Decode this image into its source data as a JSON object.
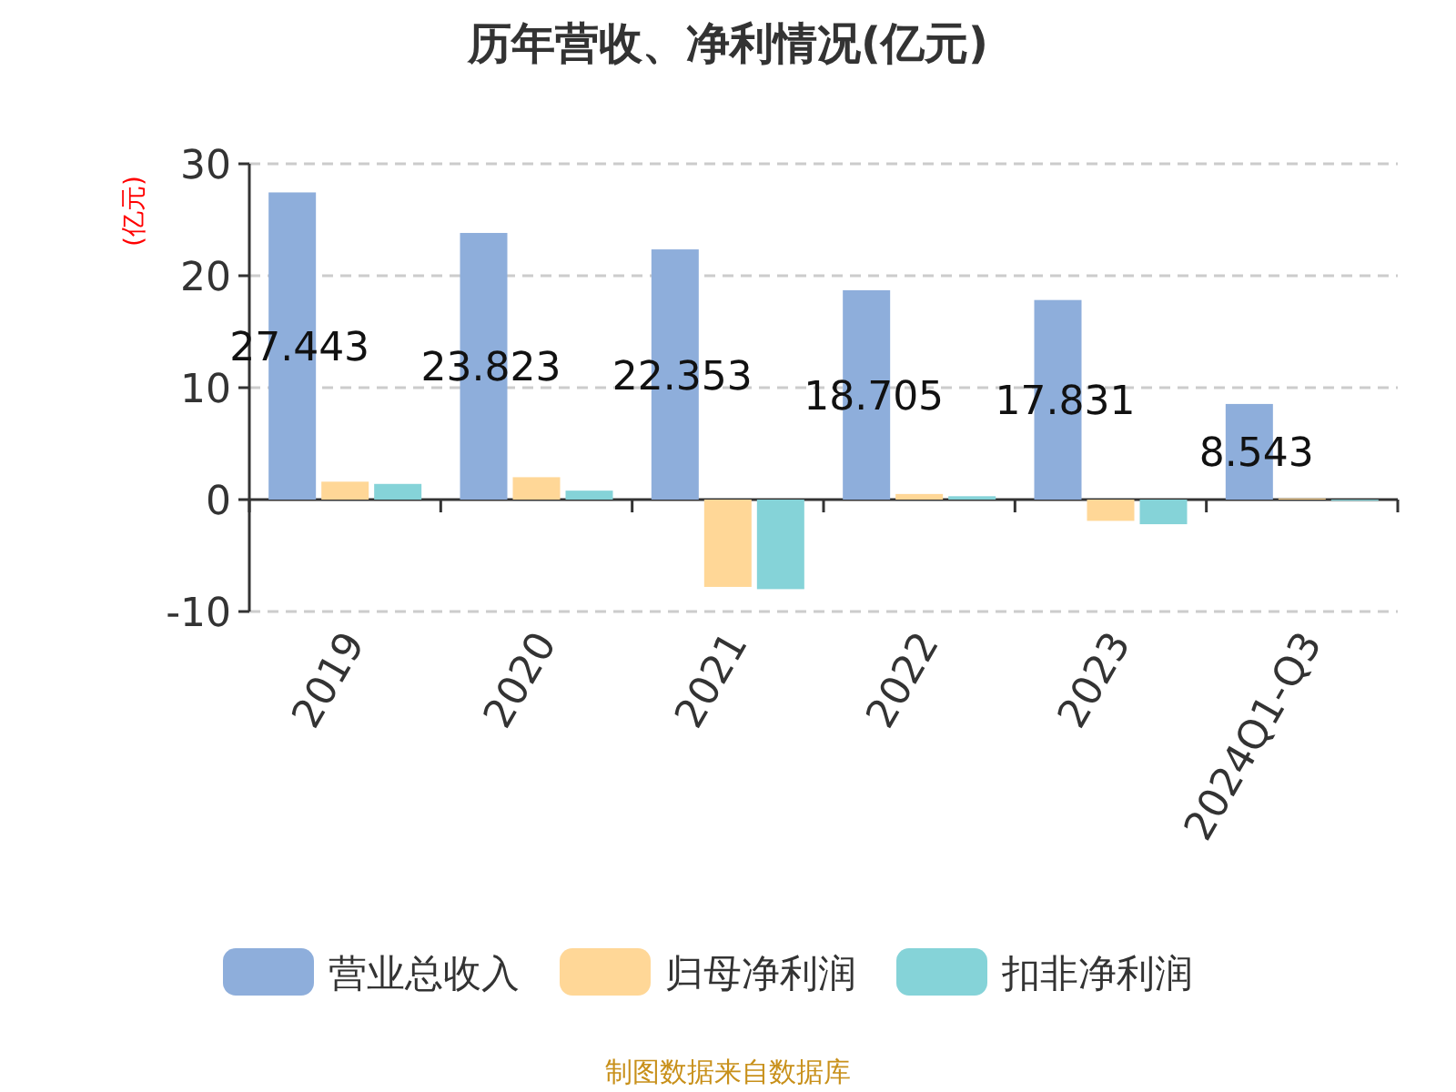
{
  "chart_data": {
    "type": "bar",
    "title": "历年营收、净利情况(亿元)",
    "ylabel": "(亿元)",
    "categories": [
      "2019",
      "2020",
      "2021",
      "2022",
      "2023",
      "2024Q1-Q3"
    ],
    "series": [
      {
        "name": "营业总收入",
        "color": "#8eaedb",
        "values": [
          27.443,
          23.823,
          22.353,
          18.705,
          17.831,
          8.543
        ],
        "value_labels": [
          "27.443",
          "23.823",
          "22.353",
          "18.705",
          "17.831",
          "8.543"
        ]
      },
      {
        "name": "归母净利润",
        "color": "#ffd797",
        "values": [
          1.6,
          2.0,
          -7.8,
          0.5,
          -1.9,
          0.1
        ]
      },
      {
        "name": "扣非净利润",
        "color": "#85d3d8",
        "values": [
          1.4,
          0.8,
          -8.0,
          0.3,
          -2.2,
          -0.1
        ]
      }
    ],
    "ylim": [
      -10,
      30
    ],
    "yticks": [
      -10,
      0,
      10,
      20,
      30
    ],
    "grid": "y",
    "legend": "bottom",
    "annotations": [
      "制图数据来自数据库"
    ]
  }
}
